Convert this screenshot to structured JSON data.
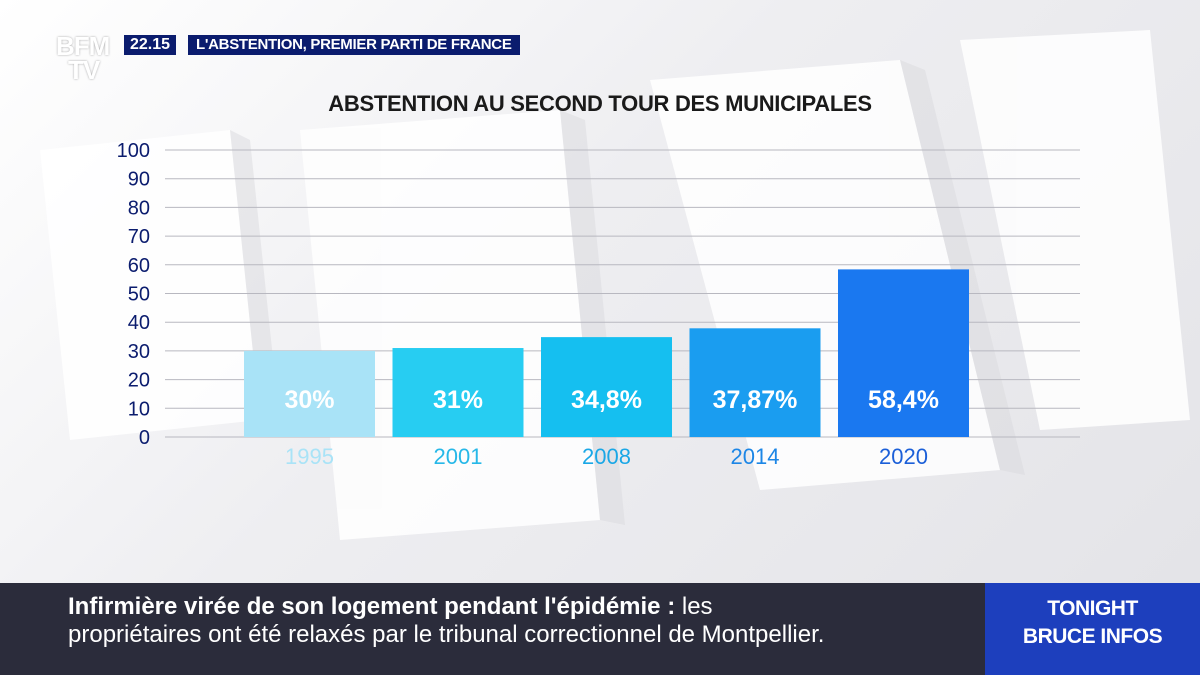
{
  "header": {
    "logo_line1": "BFM",
    "logo_line2": "TV",
    "time": "22.15",
    "topic": "L'ABSTENTION, PREMIER PARTI DE FRANCE"
  },
  "chart_data": {
    "type": "bar",
    "title": "ABSTENTION AU SECOND TOUR DES MUNICIPALES",
    "categories": [
      "1995",
      "2001",
      "2008",
      "2014",
      "2020"
    ],
    "values": [
      30,
      31,
      34.8,
      37.87,
      58.4
    ],
    "data_labels": [
      "30%",
      "31%",
      "34,8%",
      "37,87%",
      "58,4%"
    ],
    "ylim": [
      0,
      100
    ],
    "yticks": [
      0,
      10,
      20,
      30,
      40,
      50,
      60,
      70,
      80,
      90,
      100
    ],
    "grid": true,
    "bar_colors": [
      "#a9e3f7",
      "#27cdf2",
      "#15bff0",
      "#1a9df0",
      "#1a78f0"
    ],
    "category_label_colors": [
      "#a9e3f7",
      "#27b8e8",
      "#1aa7e6",
      "#1c86e6",
      "#1b5fd8"
    ],
    "axis_color": "#0b1c6e"
  },
  "ticker": {
    "headline": "Infirmière virée de son logement pendant l'épidémie",
    "separator": " : ",
    "line1_rest": "les",
    "line2": "propriétaires ont été relaxés par le tribunal correctionnel de Montpellier."
  },
  "show": {
    "line1": "TONIGHT",
    "line2": "BRUCE INFOS"
  }
}
